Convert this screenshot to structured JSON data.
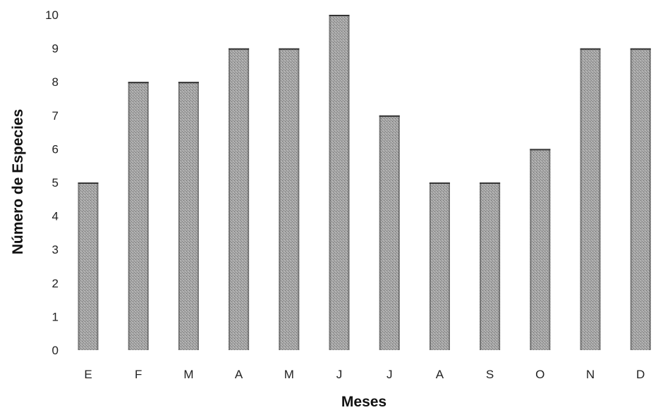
{
  "chart_data": {
    "type": "bar",
    "categories": [
      "E",
      "F",
      "M",
      "A",
      "M",
      "J",
      "J",
      "A",
      "S",
      "O",
      "N",
      "D"
    ],
    "values": [
      5,
      8,
      8,
      9,
      9,
      10,
      7,
      5,
      5,
      6,
      9,
      9
    ],
    "xlabel": "Meses",
    "ylabel": "Número de Especies",
    "ylim": [
      0,
      10
    ],
    "yticks": [
      0,
      1,
      2,
      3,
      4,
      5,
      6,
      7,
      8,
      9,
      10
    ],
    "grid": false,
    "legend": "none",
    "colors": {
      "bar_fill": "#9a9a9a",
      "bar_dark": "#555555",
      "axis_text": "#222222"
    }
  }
}
